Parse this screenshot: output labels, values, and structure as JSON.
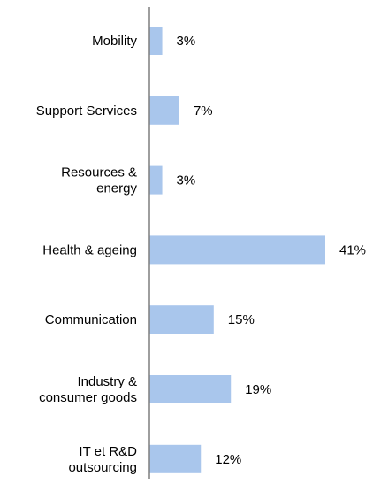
{
  "chart_data": {
    "type": "bar",
    "orientation": "horizontal",
    "categories": [
      [
        "Mobility"
      ],
      [
        "Support Services"
      ],
      [
        "Resources &",
        "energy"
      ],
      [
        "Health & ageing"
      ],
      [
        "Communication"
      ],
      [
        "Industry &",
        "consumer goods"
      ],
      [
        "IT et R&D",
        "outsourcing"
      ]
    ],
    "values": [
      3,
      7,
      3,
      41,
      15,
      19,
      12
    ],
    "value_labels": [
      "3%",
      "7%",
      "3%",
      "41%",
      "15%",
      "19%",
      "12%"
    ],
    "unit": "%",
    "xlim": [
      0,
      41
    ],
    "title": "",
    "xlabel": "",
    "ylabel": "",
    "grid": false,
    "legend": "none",
    "colors": {
      "bar": "#a9c6ec",
      "axis": "#7f7f7f",
      "text": "#000000"
    }
  }
}
